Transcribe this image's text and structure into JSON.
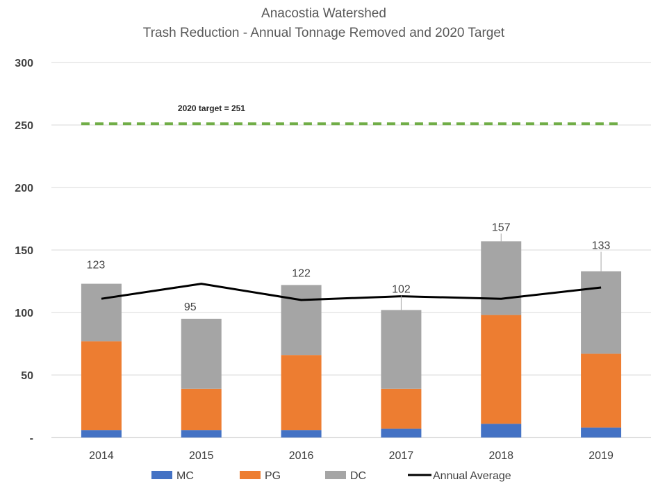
{
  "chart_data": {
    "type": "bar",
    "stacked": true,
    "title": "Anacostia Watershed",
    "subtitle": "Trash Reduction - Annual Tonnage Removed and 2020 Target",
    "categories": [
      "2014",
      "2015",
      "2016",
      "2017",
      "2018",
      "2019"
    ],
    "series": [
      {
        "name": "MC",
        "type": "bar",
        "color": "#4472C4",
        "values": [
          6,
          6,
          6,
          7,
          11,
          8
        ]
      },
      {
        "name": "PG",
        "type": "bar",
        "color": "#ED7D31",
        "values": [
          71,
          33,
          60,
          32,
          87,
          59
        ]
      },
      {
        "name": "DC",
        "type": "bar",
        "color": "#A5A5A5",
        "values": [
          46,
          56,
          56,
          63,
          59,
          66
        ]
      },
      {
        "name": "Annual Average",
        "type": "line",
        "color": "#000000",
        "values": [
          111,
          123,
          110,
          113,
          111,
          120
        ]
      }
    ],
    "totals": [
      123,
      95,
      122,
      102,
      157,
      133
    ],
    "total_labels": [
      "123",
      "95",
      "122",
      "102",
      "157",
      "133"
    ],
    "target": {
      "value": 251,
      "label": "2020 target = 251",
      "color": "#70AD47"
    },
    "ylim": [
      0,
      300
    ],
    "yticks": [
      0,
      50,
      100,
      150,
      200,
      250,
      300
    ],
    "ytick_labels": [
      "-",
      "50",
      "100",
      "150",
      "200",
      "250",
      "300"
    ],
    "grid": true,
    "legend_position": "bottom"
  }
}
